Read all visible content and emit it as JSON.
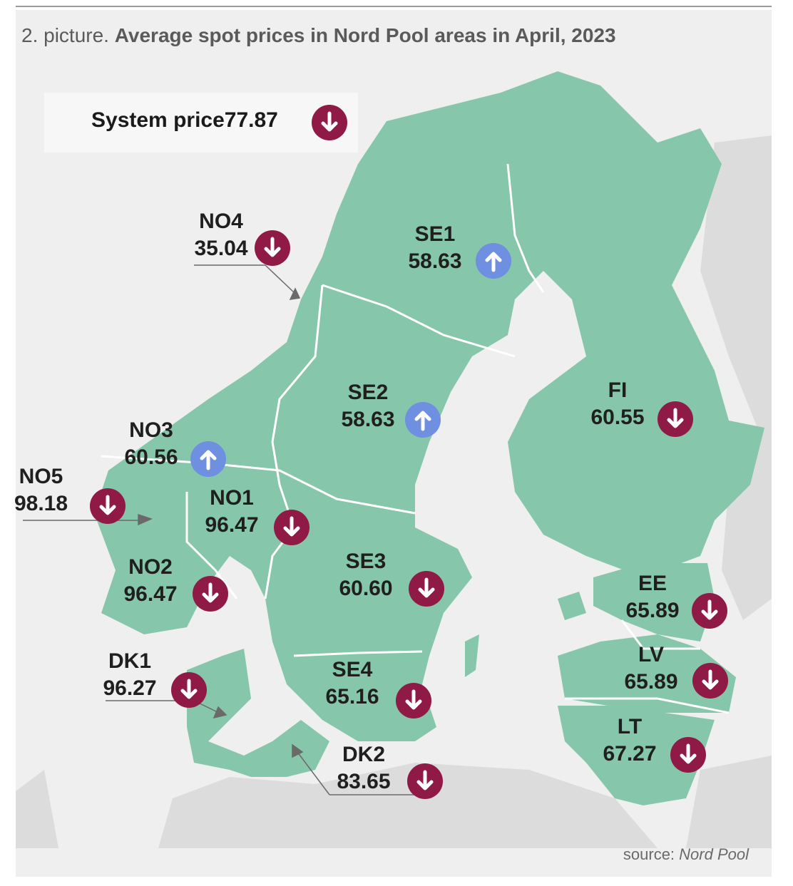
{
  "title": {
    "prefix": "2. picture. ",
    "main": "Average spot prices in Nord Pool areas in April, 2023"
  },
  "system_price": {
    "label": "System price",
    "value": "77.87",
    "direction": "down"
  },
  "areas": [
    {
      "id": "NO4",
      "name": "NO4",
      "value": "35.04",
      "direction": "down"
    },
    {
      "id": "SE1",
      "name": "SE1",
      "value": "58.63",
      "direction": "up"
    },
    {
      "id": "SE2",
      "name": "SE2",
      "value": "58.63",
      "direction": "up"
    },
    {
      "id": "FI",
      "name": "FI",
      "value": "60.55",
      "direction": "down"
    },
    {
      "id": "NO3",
      "name": "NO3",
      "value": "60.56",
      "direction": "up"
    },
    {
      "id": "NO5",
      "name": "NO5",
      "value": "98.18",
      "direction": "down"
    },
    {
      "id": "NO1",
      "name": "NO1",
      "value": "96.47",
      "direction": "down"
    },
    {
      "id": "NO2",
      "name": "NO2",
      "value": "96.47",
      "direction": "down"
    },
    {
      "id": "SE3",
      "name": "SE3",
      "value": "60.60",
      "direction": "down"
    },
    {
      "id": "EE",
      "name": "EE",
      "value": "65.89",
      "direction": "down"
    },
    {
      "id": "LV",
      "name": "LV",
      "value": "65.89",
      "direction": "down"
    },
    {
      "id": "SE4",
      "name": "SE4",
      "value": "65.16",
      "direction": "down"
    },
    {
      "id": "DK1",
      "name": "DK1",
      "value": "96.27",
      "direction": "down"
    },
    {
      "id": "LT",
      "name": "LT",
      "value": "67.27",
      "direction": "down"
    },
    {
      "id": "DK2",
      "name": "DK2",
      "value": "83.65",
      "direction": "down"
    }
  ],
  "source": {
    "prefix": "source: ",
    "name": "Nord Pool"
  },
  "colors": {
    "land_area": "#86c6ab",
    "land_other": "#dcdcdc",
    "sea": "#efefef",
    "down_badge": "#8e1a45",
    "up_badge": "#6f8fe0",
    "border": "#ffffff"
  }
}
